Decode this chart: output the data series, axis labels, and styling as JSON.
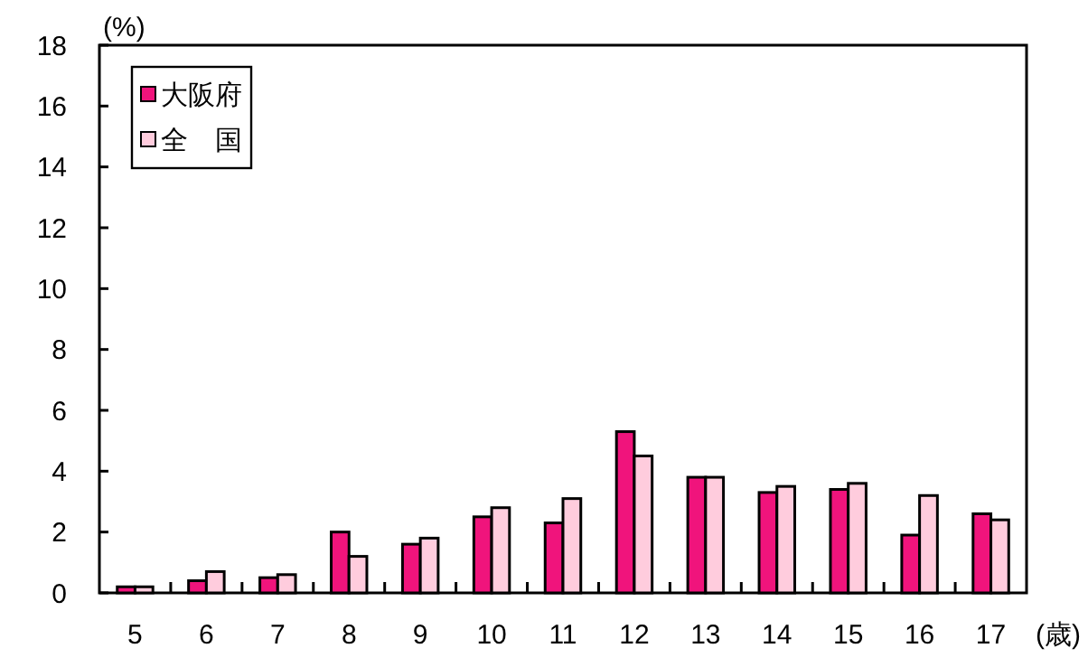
{
  "chart_data": {
    "type": "bar",
    "ylabel": "(%)",
    "xlabel": "(歳)",
    "categories": [
      "5",
      "6",
      "7",
      "8",
      "9",
      "10",
      "11",
      "12",
      "13",
      "14",
      "15",
      "16",
      "17"
    ],
    "series": [
      {
        "name": "大阪府",
        "color": "#f0147c",
        "values": [
          0.2,
          0.4,
          0.5,
          2.0,
          1.6,
          2.5,
          2.3,
          5.3,
          3.8,
          3.3,
          3.4,
          1.9,
          2.6
        ]
      },
      {
        "name": "全　国",
        "color": "#ffccdd",
        "values": [
          0.2,
          0.7,
          0.6,
          1.2,
          1.8,
          2.8,
          3.1,
          4.5,
          3.8,
          3.5,
          3.6,
          3.2,
          2.4
        ]
      }
    ],
    "ylim": [
      0,
      18
    ],
    "yticks": [
      0,
      2,
      4,
      6,
      8,
      10,
      12,
      14,
      16,
      18
    ],
    "grid": false,
    "legend": "top left"
  }
}
